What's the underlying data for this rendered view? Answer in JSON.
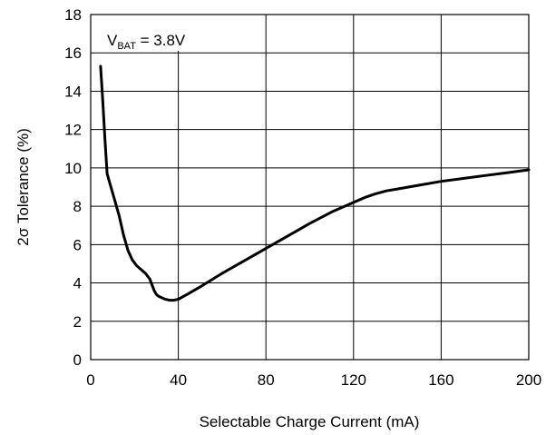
{
  "chart_data": {
    "type": "line",
    "title": "",
    "xlabel": "Selectable Charge Current (mA)",
    "ylabel": "2σ Tolerance (%)",
    "xlim": [
      0,
      200
    ],
    "ylim": [
      0,
      18
    ],
    "xticks": [
      0,
      40,
      80,
      120,
      160,
      200
    ],
    "yticks": [
      0,
      2,
      4,
      6,
      8,
      10,
      12,
      14,
      16,
      18
    ],
    "grid": true,
    "annotation": {
      "main": "V",
      "subscript": "BAT",
      "suffix": " = 3.8V"
    },
    "series": [
      {
        "x": [
          4.5,
          5.5,
          6.5,
          7.5,
          9,
          11,
          13,
          15,
          17,
          19,
          21,
          23,
          25,
          27,
          28,
          29,
          30,
          31,
          32,
          34,
          36,
          38,
          40,
          44,
          50,
          60,
          70,
          80,
          90,
          100,
          110,
          120,
          125,
          130,
          135,
          140,
          150,
          160,
          170,
          180,
          190,
          200
        ],
        "y": [
          15.3,
          13.5,
          11.5,
          9.7,
          9.1,
          8.3,
          7.5,
          6.5,
          5.7,
          5.2,
          4.9,
          4.7,
          4.5,
          4.2,
          3.9,
          3.6,
          3.4,
          3.3,
          3.25,
          3.15,
          3.1,
          3.1,
          3.15,
          3.4,
          3.8,
          4.5,
          5.15,
          5.8,
          6.45,
          7.1,
          7.7,
          8.2,
          8.45,
          8.65,
          8.8,
          8.9,
          9.1,
          9.3,
          9.45,
          9.6,
          9.75,
          9.9
        ]
      }
    ]
  },
  "colors": {
    "line": "#000000",
    "grid": "#000000",
    "background": "#ffffff"
  }
}
